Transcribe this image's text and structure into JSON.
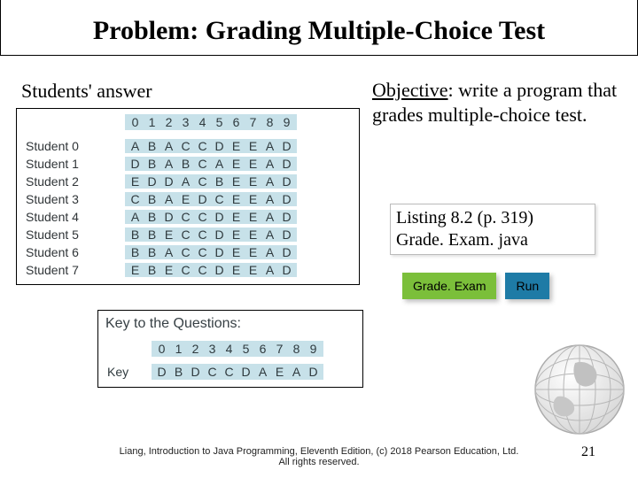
{
  "title": "Problem: Grading Multiple-Choice Test",
  "subheading": "Students' answer",
  "answers": {
    "col_headers": [
      "0",
      "1",
      "2",
      "3",
      "4",
      "5",
      "6",
      "7",
      "8",
      "9"
    ],
    "rows": [
      {
        "label": "Student 0",
        "cells": [
          "A",
          "B",
          "A",
          "C",
          "C",
          "D",
          "E",
          "E",
          "A",
          "D"
        ]
      },
      {
        "label": "Student 1",
        "cells": [
          "D",
          "B",
          "A",
          "B",
          "C",
          "A",
          "E",
          "E",
          "A",
          "D"
        ]
      },
      {
        "label": "Student 2",
        "cells": [
          "E",
          "D",
          "D",
          "A",
          "C",
          "B",
          "E",
          "E",
          "A",
          "D"
        ]
      },
      {
        "label": "Student 3",
        "cells": [
          "C",
          "B",
          "A",
          "E",
          "D",
          "C",
          "E",
          "E",
          "A",
          "D"
        ]
      },
      {
        "label": "Student 4",
        "cells": [
          "A",
          "B",
          "D",
          "C",
          "C",
          "D",
          "E",
          "E",
          "A",
          "D"
        ]
      },
      {
        "label": "Student 5",
        "cells": [
          "B",
          "B",
          "E",
          "C",
          "C",
          "D",
          "E",
          "E",
          "A",
          "D"
        ]
      },
      {
        "label": "Student 6",
        "cells": [
          "B",
          "B",
          "A",
          "C",
          "C",
          "D",
          "E",
          "E",
          "A",
          "D"
        ]
      },
      {
        "label": "Student 7",
        "cells": [
          "E",
          "B",
          "E",
          "C",
          "C",
          "D",
          "E",
          "E",
          "A",
          "D"
        ]
      }
    ]
  },
  "objective": {
    "label": "Objective",
    "text": ": write a program that grades multiple-choice test."
  },
  "listing": {
    "line1": "Listing 8.2 (p. 319)",
    "line2": "Grade. Exam. java"
  },
  "buttons": {
    "code": "Grade. Exam",
    "run": "Run"
  },
  "key": {
    "title": "Key to the Questions:",
    "col_headers": [
      "0",
      "1",
      "2",
      "3",
      "4",
      "5",
      "6",
      "7",
      "8",
      "9"
    ],
    "label": "Key",
    "cells": [
      "D",
      "B",
      "D",
      "C",
      "C",
      "D",
      "A",
      "E",
      "A",
      "D"
    ]
  },
  "footer": {
    "l1": "Liang, Introduction to Java Programming, Eleventh Edition, (c) 2018 Pearson Education, Ltd.",
    "l2": "All rights reserved."
  },
  "page": "21",
  "colors": {
    "cell_bg": "#c7e1e9",
    "btn_green": "#7bbf3a",
    "btn_blue": "#1e7ba6"
  }
}
